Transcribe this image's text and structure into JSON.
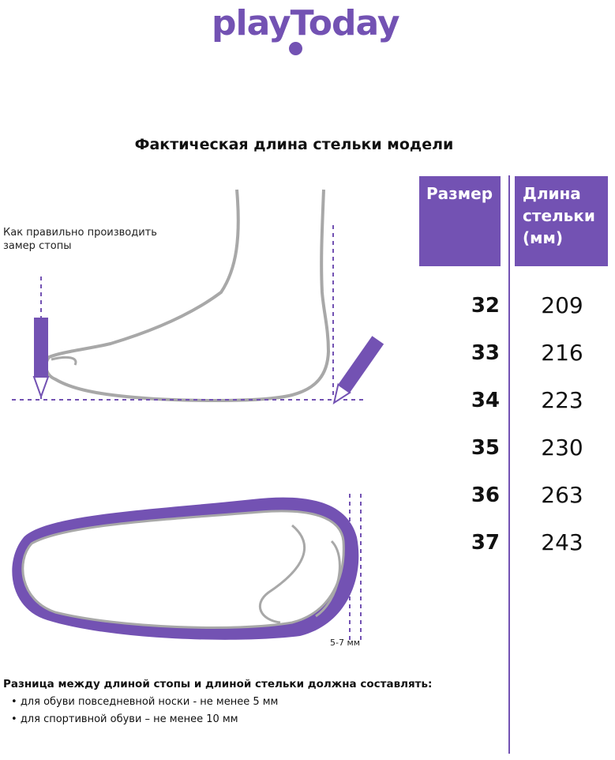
{
  "logo": {
    "text": "playToday",
    "brand_color": "#7352b3"
  },
  "title": "Фактическая длина стельки модели",
  "table": {
    "headers": {
      "size": "Размер",
      "length": "Длина стельки (мм)"
    },
    "rows": [
      {
        "size": "32",
        "length": "209"
      },
      {
        "size": "33",
        "length": "216"
      },
      {
        "size": "34",
        "length": "223"
      },
      {
        "size": "35",
        "length": "230"
      },
      {
        "size": "36",
        "length": "263"
      },
      {
        "size": "37",
        "length": "243"
      }
    ]
  },
  "measure_note": "Как правильно производить замер стопы",
  "gap_label": "5-7 мм",
  "difference": {
    "title": "Разница между длиной стопы и длиной стельки должна составлять:",
    "items": [
      "для обуви повседневной носки -  не менее 5 мм",
      "для спортивной обуви – не менее 10 мм"
    ]
  },
  "colors": {
    "accent": "#7352b3",
    "outline": "#a8a8a8"
  }
}
